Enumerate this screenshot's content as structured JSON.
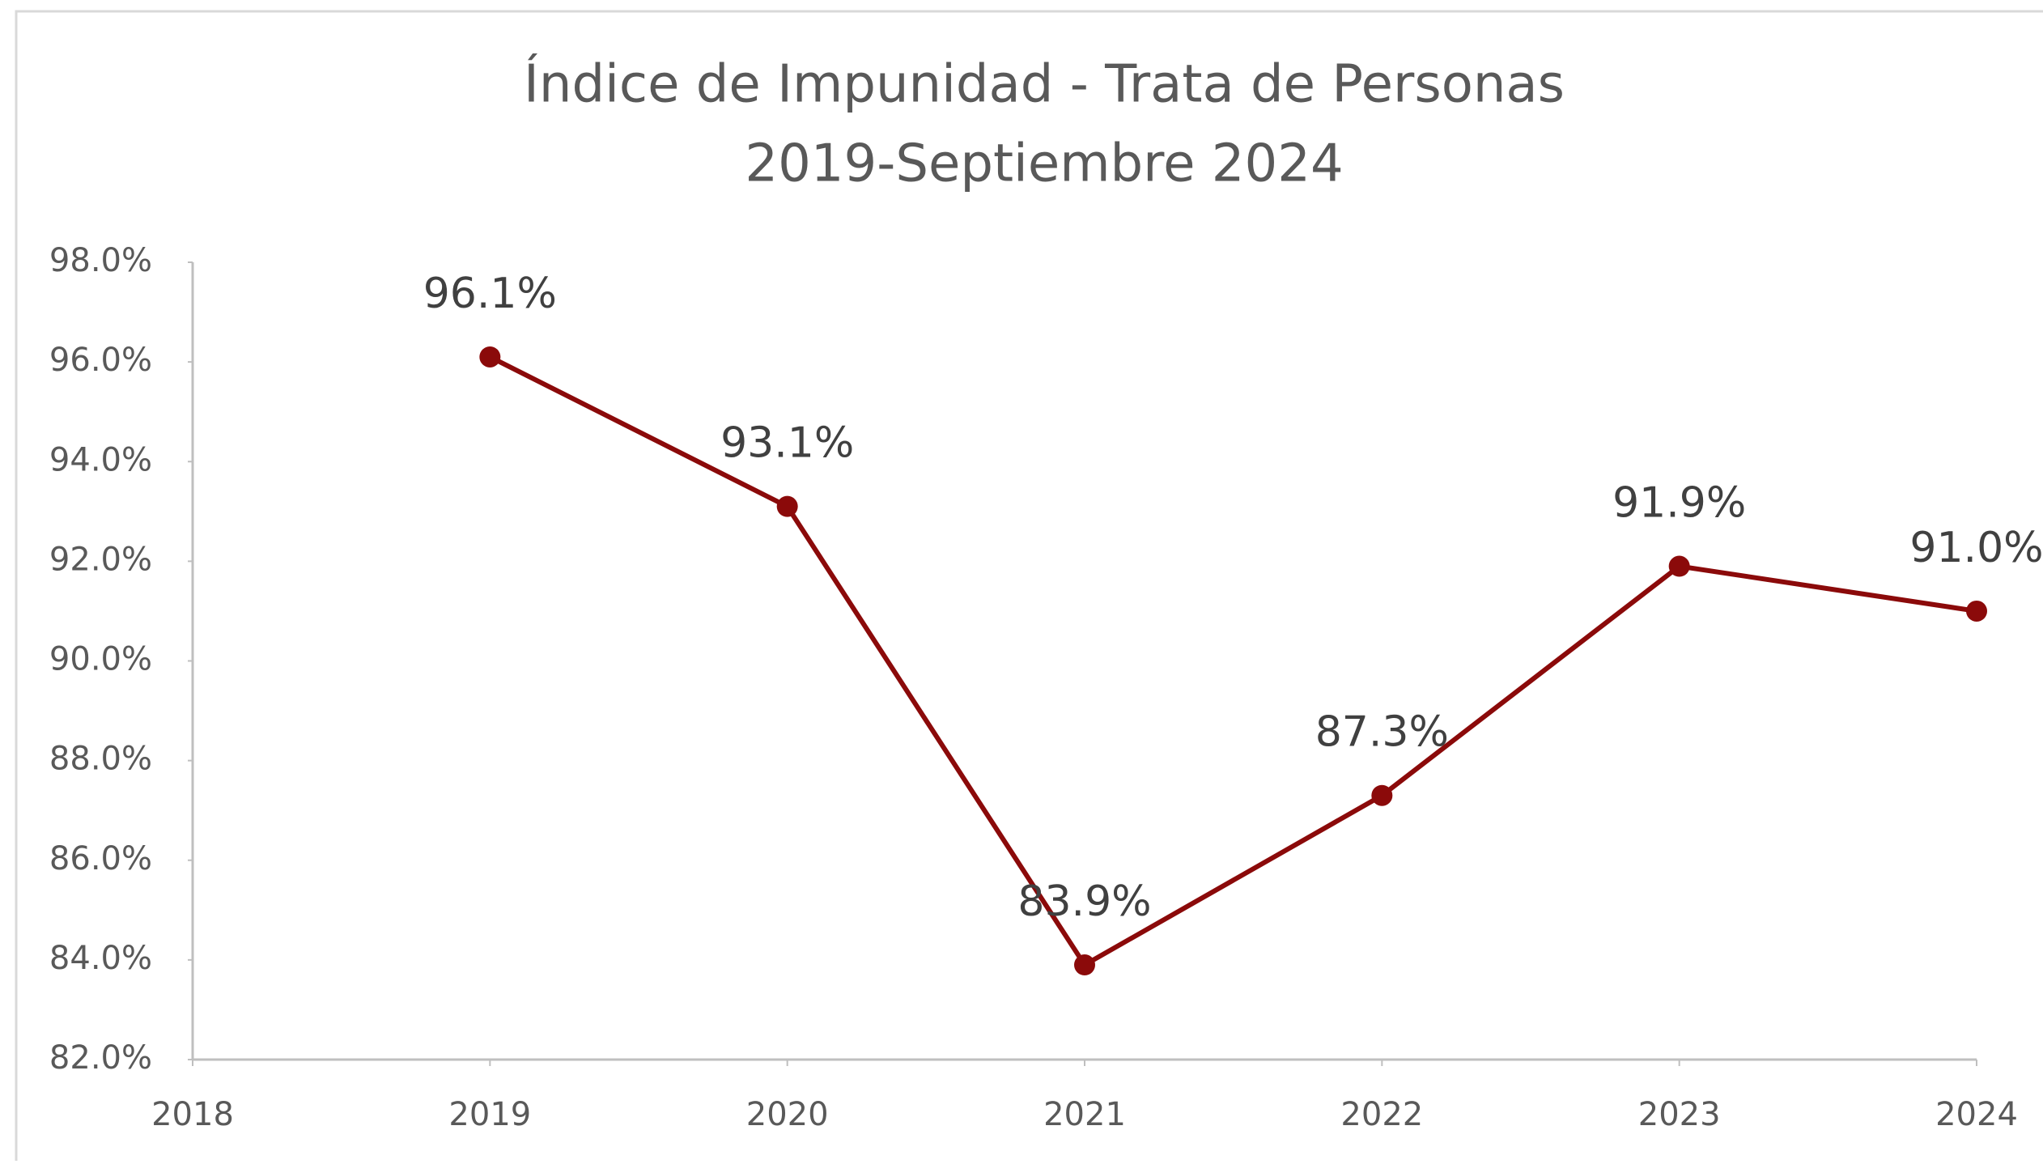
{
  "chart_data": {
    "type": "line",
    "title": "Índice de Impunidad - Trata de Personas",
    "subtitle": "2019-Septiembre 2024",
    "x": [
      2019,
      2020,
      2021,
      2022,
      2023,
      2024
    ],
    "series": [
      {
        "name": "Índice de Impunidad",
        "color": "#8b0a0a",
        "values": [
          96.1,
          93.1,
          83.9,
          87.3,
          91.9,
          91.0
        ],
        "value_labels": [
          "96.1%",
          "93.1%",
          "83.9%",
          "87.3%",
          "91.9%",
          "91.0%"
        ]
      }
    ],
    "xlim": [
      2018,
      2024
    ],
    "xticks": [
      2018,
      2019,
      2020,
      2021,
      2022,
      2023,
      2024
    ],
    "ylim": [
      82,
      98
    ],
    "yticks": [
      {
        "value": 82,
        "label": "82.0%"
      },
      {
        "value": 84,
        "label": "84.0%"
      },
      {
        "value": 86,
        "label": "86.0%"
      },
      {
        "value": 88,
        "label": "88.0%"
      },
      {
        "value": 90,
        "label": "90.0%"
      },
      {
        "value": 92,
        "label": "92.0%"
      },
      {
        "value": 94,
        "label": "94.0%"
      },
      {
        "value": 96,
        "label": "96.0%"
      },
      {
        "value": 98,
        "label": "98.0%"
      }
    ],
    "grid": false
  }
}
